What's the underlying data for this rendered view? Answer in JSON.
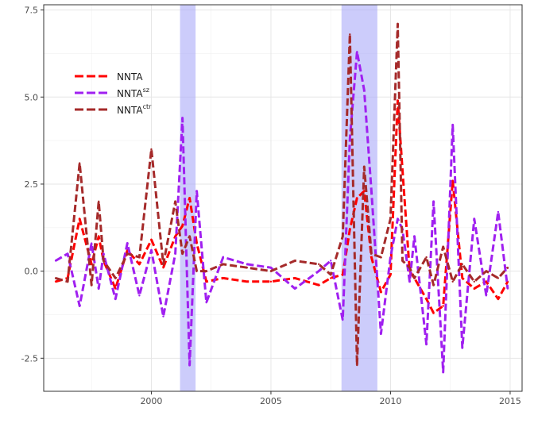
{
  "chart_data": {
    "type": "line",
    "title": "",
    "xlabel": "",
    "ylabel": "",
    "xlim": [
      1995.5,
      2015.5
    ],
    "ylim": [
      -3.45,
      7.65
    ],
    "x_ticks": [
      2000,
      2005,
      2010,
      2015
    ],
    "y_ticks": [
      -2.5,
      0.0,
      2.5,
      5.0,
      7.5
    ],
    "x_tick_labels": [
      "2000",
      "2005",
      "2010",
      "2015"
    ],
    "y_tick_labels": [
      "-2.5",
      "0.0",
      "2.5",
      "5.0",
      "7.5"
    ],
    "grid": true,
    "legend_position": "top-left",
    "shaded_periods": [
      {
        "start": 2001.2,
        "end": 2001.85
      },
      {
        "start": 2007.95,
        "end": 2009.45
      }
    ],
    "shade_color": "#aaaaf8",
    "series": [
      {
        "name": "NNTA",
        "sup": "",
        "color": "#ff0000",
        "x": [
          1996.0,
          1996.5,
          1997.0,
          1997.5,
          1997.8,
          1998.0,
          1998.5,
          1999.0,
          1999.5,
          2000.0,
          2000.5,
          2001.0,
          2001.3,
          2001.6,
          2001.9,
          2002.3,
          2003.0,
          2004.0,
          2005.0,
          2006.0,
          2007.0,
          2007.5,
          2008.0,
          2008.3,
          2008.6,
          2008.9,
          2009.2,
          2009.6,
          2010.0,
          2010.3,
          2010.5,
          2010.8,
          2011.0,
          2011.5,
          2011.8,
          2012.2,
          2012.6,
          2013.0,
          2013.5,
          2014.0,
          2014.5,
          2014.9
        ],
        "y": [
          -0.3,
          -0.2,
          1.5,
          0.2,
          1.0,
          0.3,
          -0.5,
          0.6,
          0.2,
          0.9,
          0.1,
          1.0,
          1.3,
          2.1,
          0.8,
          -0.3,
          -0.2,
          -0.3,
          -0.3,
          -0.2,
          -0.4,
          -0.2,
          -0.1,
          1.2,
          2.1,
          2.3,
          0.4,
          -0.6,
          -0.1,
          4.9,
          2.9,
          0.0,
          -0.2,
          -0.8,
          -1.2,
          -1.0,
          2.6,
          -0.2,
          -0.5,
          -0.3,
          -0.8,
          -0.3
        ]
      },
      {
        "name": "NNTA",
        "sup": "sz",
        "color": "#a020f0",
        "x": [
          1996.0,
          1996.5,
          1997.0,
          1997.5,
          1997.8,
          1998.0,
          1998.5,
          1999.0,
          1999.5,
          2000.0,
          2000.5,
          2001.0,
          2001.3,
          2001.6,
          2001.9,
          2002.3,
          2003.0,
          2004.0,
          2005.0,
          2006.0,
          2007.0,
          2007.5,
          2008.0,
          2008.3,
          2008.6,
          2008.9,
          2009.2,
          2009.6,
          2010.0,
          2010.3,
          2010.5,
          2010.8,
          2011.0,
          2011.5,
          2011.8,
          2012.2,
          2012.6,
          2013.0,
          2013.5,
          2014.0,
          2014.5,
          2014.9
        ],
        "y": [
          0.3,
          0.5,
          -1.0,
          0.8,
          -0.5,
          0.5,
          -0.8,
          0.8,
          -0.7,
          0.6,
          -1.3,
          0.5,
          4.4,
          -2.7,
          2.3,
          -0.9,
          0.4,
          0.2,
          0.1,
          -0.5,
          0.0,
          0.3,
          -1.4,
          3.8,
          6.3,
          5.2,
          2.3,
          -1.8,
          0.4,
          1.5,
          1.2,
          -0.3,
          1.0,
          -2.1,
          2.0,
          -2.9,
          4.2,
          -2.2,
          1.5,
          -0.7,
          1.7,
          -0.5
        ]
      },
      {
        "name": "NNTA",
        "sup": "ctr",
        "color": "#a52a2a",
        "x": [
          1996.0,
          1996.5,
          1997.0,
          1997.5,
          1997.8,
          1998.0,
          1998.5,
          1999.0,
          1999.5,
          2000.0,
          2000.5,
          2001.0,
          2001.3,
          2001.6,
          2001.9,
          2002.3,
          2003.0,
          2004.0,
          2005.0,
          2006.0,
          2007.0,
          2007.5,
          2008.0,
          2008.3,
          2008.6,
          2008.9,
          2009.2,
          2009.6,
          2010.0,
          2010.3,
          2010.5,
          2010.8,
          2011.0,
          2011.5,
          2011.8,
          2012.2,
          2012.6,
          2013.0,
          2013.5,
          2014.0,
          2014.5,
          2014.9
        ],
        "y": [
          -0.2,
          -0.3,
          3.1,
          -0.4,
          2.0,
          0.3,
          -0.2,
          0.5,
          0.4,
          3.5,
          0.2,
          2.0,
          0.5,
          1.0,
          0.0,
          0.0,
          0.2,
          0.1,
          0.0,
          0.3,
          0.2,
          -0.1,
          1.0,
          6.8,
          -2.7,
          3.0,
          0.5,
          0.4,
          1.5,
          7.1,
          0.3,
          0.1,
          -0.2,
          0.4,
          -0.4,
          0.7,
          -0.3,
          0.2,
          -0.3,
          0.0,
          -0.2,
          0.1
        ]
      }
    ]
  }
}
